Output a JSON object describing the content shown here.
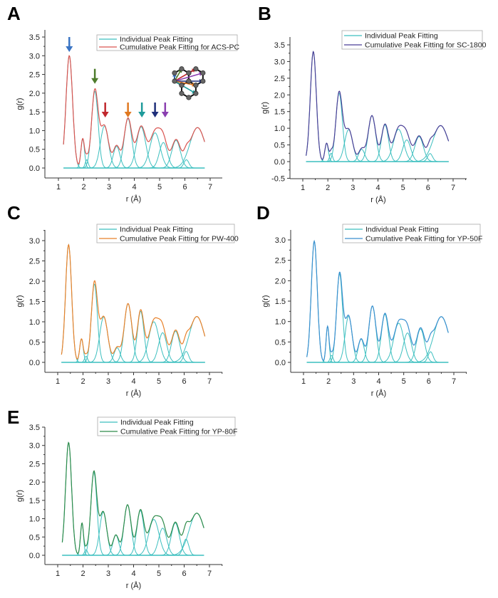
{
  "chart_data": [
    {
      "type": "line",
      "panel": "A",
      "title": "",
      "xlabel": "r (Å)",
      "ylabel": "g(r)",
      "xlim": [
        0.5,
        7.5
      ],
      "ylim": [
        -0.3,
        3.5
      ],
      "xticks": [
        "1",
        "2",
        "3",
        "4",
        "5",
        "6",
        "7"
      ],
      "yticks": [
        "0.0",
        "0.5",
        "1.0",
        "1.5",
        "2.0",
        "2.5",
        "3.0",
        "3.5"
      ],
      "legend": {
        "placement": "top-right",
        "entries": [
          "Individual Peak Fitting",
          "Cumulative Peak Fitting for ACS-PC"
        ]
      },
      "colors": {
        "individual": "#3cbfbf",
        "cumulative": "#d9534f"
      },
      "x_range": [
        1.2,
        6.78
      ],
      "peaks": [
        {
          "center": 1.43,
          "height": 3.0,
          "width": 0.13
        },
        {
          "center": 1.96,
          "height": 0.78,
          "width": 0.07
        },
        {
          "center": 2.12,
          "height": 0.22,
          "width": 0.06
        },
        {
          "center": 2.44,
          "height": 2.05,
          "width": 0.13
        },
        {
          "center": 2.82,
          "height": 1.12,
          "width": 0.16
        },
        {
          "center": 3.3,
          "height": 0.58,
          "width": 0.13
        },
        {
          "center": 3.75,
          "height": 1.32,
          "width": 0.15
        },
        {
          "center": 4.27,
          "height": 1.1,
          "width": 0.18
        },
        {
          "center": 4.82,
          "height": 0.94,
          "width": 0.2
        },
        {
          "center": 5.15,
          "height": 0.68,
          "width": 0.16
        },
        {
          "center": 5.65,
          "height": 0.74,
          "width": 0.17
        },
        {
          "center": 6.06,
          "height": 0.22,
          "width": 0.1
        },
        {
          "center": 6.5,
          "height": 1.08,
          "width": 0.3
        }
      ],
      "annotations": {
        "arrows": [
          {
            "x": 1.43,
            "color": "#3a74c4",
            "y_top": 3.5,
            "y_tip": 3.1
          },
          {
            "x": 2.44,
            "color": "#4e7c2c",
            "y_top": 2.65,
            "y_tip": 2.25
          },
          {
            "x": 2.85,
            "color": "#c0282d",
            "y_top": 1.75,
            "y_tip": 1.35
          },
          {
            "x": 3.75,
            "color": "#e07820",
            "y_top": 1.75,
            "y_tip": 1.35
          },
          {
            "x": 4.3,
            "color": "#1f9b9b",
            "y_top": 1.75,
            "y_tip": 1.35
          },
          {
            "x": 4.82,
            "color": "#1f2f7a",
            "y_top": 1.75,
            "y_tip": 1.35
          },
          {
            "x": 5.22,
            "color": "#8a3fb0",
            "y_top": 1.75,
            "y_tip": 1.35
          }
        ],
        "inset": "graphene-lattice-with-neighbor-distance-vectors"
      }
    },
    {
      "type": "line",
      "panel": "B",
      "xlabel": "r (Å)",
      "ylabel": "g(r)",
      "xlim": [
        0.5,
        7.5
      ],
      "ylim": [
        -0.5,
        3.75
      ],
      "xticks": [
        "1",
        "2",
        "3",
        "4",
        "5",
        "6",
        "7"
      ],
      "yticks": [
        "-0.5",
        "0.0",
        "0.5",
        "1.0",
        "1.5",
        "2.0",
        "2.5",
        "3.0",
        "3.5"
      ],
      "legend": {
        "placement": "top-right",
        "entries": [
          "Individual Peak Fitting",
          "Cumulative Peak Fitting for SC-1800"
        ]
      },
      "colors": {
        "individual": "#3cbfbf",
        "cumulative": "#4a3f96"
      },
      "x_range": [
        1.13,
        6.82
      ],
      "peaks": [
        {
          "center": 1.42,
          "height": 3.3,
          "width": 0.12
        },
        {
          "center": 1.95,
          "height": 0.55,
          "width": 0.07
        },
        {
          "center": 2.13,
          "height": 0.25,
          "width": 0.06
        },
        {
          "center": 2.45,
          "height": 2.05,
          "width": 0.13
        },
        {
          "center": 2.83,
          "height": 0.96,
          "width": 0.16
        },
        {
          "center": 3.35,
          "height": 0.37,
          "width": 0.12
        },
        {
          "center": 3.76,
          "height": 1.38,
          "width": 0.15
        },
        {
          "center": 4.28,
          "height": 1.1,
          "width": 0.14
        },
        {
          "center": 4.82,
          "height": 0.97,
          "width": 0.2
        },
        {
          "center": 5.15,
          "height": 0.65,
          "width": 0.16
        },
        {
          "center": 5.64,
          "height": 0.75,
          "width": 0.17
        },
        {
          "center": 6.08,
          "height": 0.24,
          "width": 0.1
        },
        {
          "center": 6.5,
          "height": 1.08,
          "width": 0.3
        }
      ]
    },
    {
      "type": "line",
      "panel": "C",
      "xlabel": "r (Å)",
      "ylabel": "g(r)",
      "xlim": [
        0.5,
        7.5
      ],
      "ylim": [
        -0.25,
        3.25
      ],
      "xticks": [
        "1",
        "2",
        "3",
        "4",
        "5",
        "6",
        "7"
      ],
      "yticks": [
        "0.0",
        "0.5",
        "1.0",
        "1.5",
        "2.0",
        "2.5",
        "3.0"
      ],
      "legend": {
        "placement": "top-right",
        "entries": [
          "Individual Peak Fitting",
          "Cumulative Peak Fitting for PW-400"
        ]
      },
      "colors": {
        "individual": "#3cbfbf",
        "cumulative": "#e8812a"
      },
      "x_range": [
        1.15,
        6.82
      ],
      "peaks": [
        {
          "center": 1.43,
          "height": 2.9,
          "width": 0.12
        },
        {
          "center": 1.94,
          "height": 0.58,
          "width": 0.07
        },
        {
          "center": 2.12,
          "height": 0.15,
          "width": 0.06
        },
        {
          "center": 2.45,
          "height": 1.93,
          "width": 0.12
        },
        {
          "center": 2.82,
          "height": 1.12,
          "width": 0.16
        },
        {
          "center": 3.35,
          "height": 0.36,
          "width": 0.12
        },
        {
          "center": 3.78,
          "height": 1.45,
          "width": 0.15
        },
        {
          "center": 4.28,
          "height": 1.26,
          "width": 0.13
        },
        {
          "center": 4.8,
          "height": 1.0,
          "width": 0.2
        },
        {
          "center": 5.15,
          "height": 0.73,
          "width": 0.16
        },
        {
          "center": 5.66,
          "height": 0.77,
          "width": 0.16
        },
        {
          "center": 6.08,
          "height": 0.27,
          "width": 0.1
        },
        {
          "center": 6.5,
          "height": 1.13,
          "width": 0.3
        }
      ]
    },
    {
      "type": "line",
      "panel": "D",
      "xlabel": "r (Å)",
      "ylabel": "g(r)",
      "xlim": [
        0.5,
        7.5
      ],
      "ylim": [
        -0.25,
        3.25
      ],
      "xticks": [
        "1",
        "2",
        "3",
        "4",
        "5",
        "6",
        "7"
      ],
      "yticks": [
        "0.0",
        "0.5",
        "1.0",
        "1.5",
        "2.0",
        "2.5",
        "3.0"
      ],
      "legend": {
        "placement": "top-right",
        "entries": [
          "Individual Peak Fitting",
          "Cumulative Peak Fitting for YP-50F"
        ]
      },
      "colors": {
        "individual": "#3cbfbf",
        "cumulative": "#3a8fcf"
      },
      "x_range": [
        1.13,
        6.78
      ],
      "peaks": [
        {
          "center": 1.43,
          "height": 2.97,
          "width": 0.12
        },
        {
          "center": 1.96,
          "height": 0.88,
          "width": 0.06
        },
        {
          "center": 2.12,
          "height": 0.17,
          "width": 0.06
        },
        {
          "center": 2.44,
          "height": 2.17,
          "width": 0.12
        },
        {
          "center": 2.8,
          "height": 1.13,
          "width": 0.14
        },
        {
          "center": 3.3,
          "height": 0.57,
          "width": 0.12
        },
        {
          "center": 3.75,
          "height": 1.38,
          "width": 0.14
        },
        {
          "center": 4.25,
          "height": 1.18,
          "width": 0.14
        },
        {
          "center": 4.8,
          "height": 0.96,
          "width": 0.2
        },
        {
          "center": 5.15,
          "height": 0.72,
          "width": 0.16
        },
        {
          "center": 5.67,
          "height": 0.82,
          "width": 0.16
        },
        {
          "center": 6.07,
          "height": 0.26,
          "width": 0.1
        },
        {
          "center": 6.5,
          "height": 1.12,
          "width": 0.3
        }
      ]
    },
    {
      "type": "line",
      "panel": "E",
      "xlabel": "r (Å)",
      "ylabel": "g(r)",
      "xlim": [
        0.5,
        7.5
      ],
      "ylim": [
        -0.25,
        3.5
      ],
      "xticks": [
        "1",
        "2",
        "3",
        "4",
        "5",
        "6",
        "7"
      ],
      "yticks": [
        "0.0",
        "0.5",
        "1.0",
        "1.5",
        "2.0",
        "2.5",
        "3.0",
        "3.5"
      ],
      "legend": {
        "placement": "top-right",
        "entries": [
          "Individual Peak Fitting",
          "Cumulative Peak Fitting for YP-80F"
        ]
      },
      "colors": {
        "individual": "#3cbfbf",
        "cumulative": "#2e8b4a"
      },
      "x_range": [
        1.18,
        6.78
      ],
      "peaks": [
        {
          "center": 1.43,
          "height": 3.08,
          "width": 0.12
        },
        {
          "center": 1.96,
          "height": 0.88,
          "width": 0.06
        },
        {
          "center": 2.12,
          "height": 0.15,
          "width": 0.06
        },
        {
          "center": 2.43,
          "height": 2.27,
          "width": 0.12
        },
        {
          "center": 2.8,
          "height": 1.18,
          "width": 0.14
        },
        {
          "center": 3.3,
          "height": 0.55,
          "width": 0.12
        },
        {
          "center": 3.76,
          "height": 1.38,
          "width": 0.14
        },
        {
          "center": 4.27,
          "height": 1.22,
          "width": 0.14
        },
        {
          "center": 4.8,
          "height": 0.98,
          "width": 0.2
        },
        {
          "center": 5.15,
          "height": 0.74,
          "width": 0.16
        },
        {
          "center": 5.65,
          "height": 0.88,
          "width": 0.16
        },
        {
          "center": 6.07,
          "height": 0.44,
          "width": 0.11
        },
        {
          "center": 6.5,
          "height": 1.15,
          "width": 0.3
        }
      ]
    }
  ]
}
